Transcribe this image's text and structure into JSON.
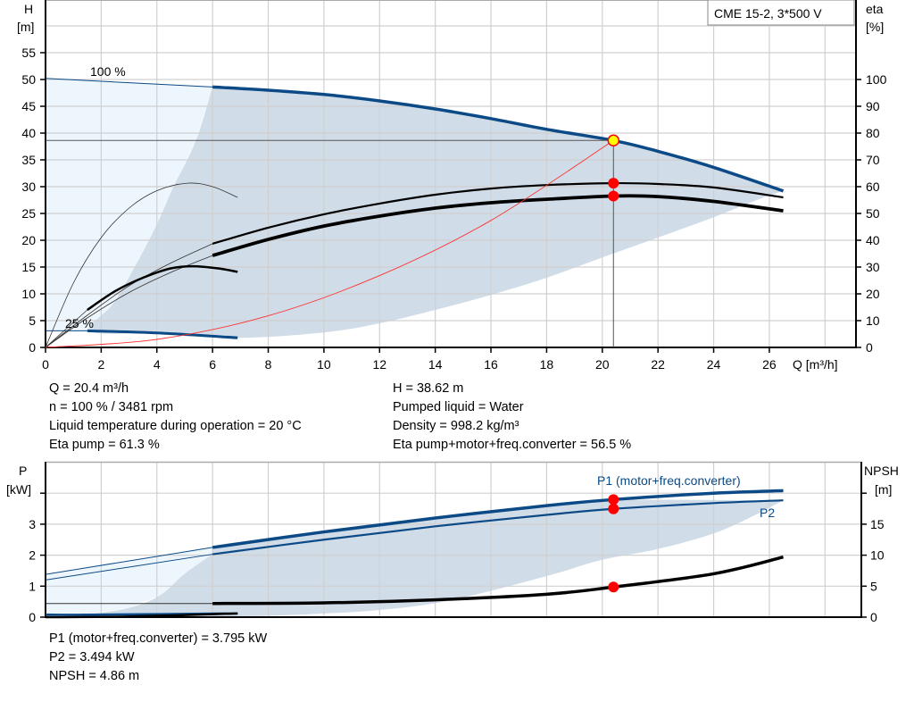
{
  "legend_box": "CME 15-2, 3*500 V",
  "colors": {
    "curve_blue": "#0b4a86",
    "range_dark": "#d0dce8",
    "range_light": "#eef6fd",
    "operating_point": "#ff0000",
    "duty_point_fill": "#ffff00",
    "system_curve": "#ff3030"
  },
  "chart_data": [
    {
      "type": "line",
      "xlabel": "Q [m³/h]",
      "ylabel_left": [
        "H",
        "[m]"
      ],
      "ylabel_right": [
        "eta",
        "[%]"
      ],
      "xlim": [
        0,
        29
      ],
      "ylim_left": [
        0,
        65
      ],
      "ylim_right": [
        0,
        130
      ],
      "x_ticks": [
        "0",
        "2",
        "4",
        "6",
        "8",
        "10",
        "12",
        "14",
        "16",
        "18",
        "20",
        "22",
        "24",
        "26"
      ],
      "y_left_ticks": [
        "0",
        "5",
        "10",
        "15",
        "20",
        "25",
        "30",
        "35",
        "40",
        "45",
        "50",
        "55"
      ],
      "y_right_ticks": [
        "0",
        "10",
        "20",
        "30",
        "40",
        "50",
        "60",
        "70",
        "80",
        "90",
        "100"
      ],
      "grid": true,
      "annotations": [
        {
          "text": "100 %",
          "q": 2.4,
          "h": 50.5
        },
        {
          "text": "25 %",
          "q": 1.0,
          "h": 3.8
        }
      ],
      "speed_100_head": [
        [
          0,
          50.2
        ],
        [
          6,
          48.6
        ],
        [
          8,
          48.0
        ],
        [
          10,
          47.2
        ],
        [
          12,
          46.0
        ],
        [
          14,
          44.5
        ],
        [
          16,
          42.7
        ],
        [
          18,
          40.7
        ],
        [
          20.4,
          38.62
        ],
        [
          22,
          36.6
        ],
        [
          24,
          33.6
        ],
        [
          26.5,
          29.2
        ]
      ],
      "speed_25_head": [
        [
          0,
          3.1
        ],
        [
          1.5,
          3.1
        ],
        [
          4,
          2.7
        ],
        [
          6.9,
          1.8
        ]
      ],
      "eta_pump_100": [
        [
          0,
          0
        ],
        [
          1.5,
          12
        ],
        [
          3,
          23
        ],
        [
          4.5,
          31.5
        ],
        [
          6,
          38.7
        ],
        [
          8,
          44.7
        ],
        [
          10,
          49.7
        ],
        [
          12,
          53.7
        ],
        [
          14,
          57
        ],
        [
          16,
          59.3
        ],
        [
          18,
          60.6
        ],
        [
          20.4,
          61.3
        ],
        [
          22,
          61
        ],
        [
          24,
          59.7
        ],
        [
          26.5,
          56
        ]
      ],
      "eta_total_100": [
        [
          0,
          0
        ],
        [
          1.5,
          11
        ],
        [
          3,
          20.5
        ],
        [
          4.5,
          28
        ],
        [
          6,
          34.3
        ],
        [
          8,
          40.3
        ],
        [
          10,
          45.3
        ],
        [
          12,
          49
        ],
        [
          14,
          52
        ],
        [
          16,
          54
        ],
        [
          18,
          55.3
        ],
        [
          20.4,
          56.5
        ],
        [
          22,
          56.3
        ],
        [
          24,
          54.5
        ],
        [
          26.5,
          51
        ]
      ],
      "eta_pump_25": [
        [
          0,
          0
        ],
        [
          1,
          24
        ],
        [
          2,
          41
        ],
        [
          3,
          52
        ],
        [
          4,
          58.5
        ],
        [
          5.1,
          61.3
        ],
        [
          6,
          60
        ],
        [
          6.9,
          56
        ]
      ],
      "eta_total_25": [
        [
          0,
          0
        ],
        [
          1.5,
          14
        ],
        [
          2.5,
          21
        ],
        [
          3.5,
          26
        ],
        [
          4.5,
          29.5
        ],
        [
          5.3,
          30.3
        ],
        [
          6.2,
          29.5
        ],
        [
          6.9,
          28.2
        ]
      ],
      "system_curve": [
        [
          0,
          0
        ],
        [
          4,
          1.5
        ],
        [
          8,
          5.9
        ],
        [
          12,
          13.4
        ],
        [
          16,
          23.7
        ],
        [
          20.4,
          38.62
        ]
      ],
      "range_dark": [
        [
          6,
          48.6
        ],
        [
          5.4,
          38.6
        ],
        [
          4.6,
          30
        ],
        [
          4,
          23
        ],
        [
          3.2,
          15
        ],
        [
          2.4,
          8
        ],
        [
          1.6,
          3.0
        ],
        [
          4,
          2.7
        ],
        [
          6.9,
          1.8
        ],
        [
          10,
          2.8
        ],
        [
          12,
          4.5
        ],
        [
          14,
          7
        ],
        [
          16,
          9.8
        ],
        [
          18,
          13
        ],
        [
          20,
          16.8
        ],
        [
          22,
          20.5
        ],
        [
          24,
          24.3
        ],
        [
          25.6,
          27.6
        ],
        [
          26.5,
          29.2
        ]
      ],
      "duty_point": {
        "q": 20.4,
        "h": 38.62
      },
      "operating_points_eta": [
        {
          "q": 20.4,
          "eta": 61.3
        },
        {
          "q": 20.4,
          "eta": 56.5
        }
      ]
    },
    {
      "type": "line",
      "ylabel_left": [
        "P",
        "[kW]"
      ],
      "ylabel_right": [
        "NPSH",
        "[m]"
      ],
      "xlim": [
        0,
        29
      ],
      "ylim_left": [
        0,
        5
      ],
      "ylim_right": [
        0,
        25
      ],
      "y_left_ticks": [
        "0",
        "1",
        "2",
        "3"
      ],
      "y_right_ticks": [
        "0",
        "5",
        "10",
        "15"
      ],
      "grid": true,
      "series_labels": {
        "p1": "P1 (motor+freq.converter)",
        "p2": "P2"
      },
      "p1": [
        [
          0,
          1.38
        ],
        [
          6,
          2.25
        ],
        [
          10,
          2.75
        ],
        [
          14,
          3.2
        ],
        [
          18,
          3.6
        ],
        [
          20.4,
          3.795
        ],
        [
          24,
          4.0
        ],
        [
          26.5,
          4.08
        ]
      ],
      "p2": [
        [
          0,
          1.2
        ],
        [
          6,
          2.03
        ],
        [
          10,
          2.5
        ],
        [
          14,
          2.93
        ],
        [
          18,
          3.3
        ],
        [
          20.4,
          3.494
        ],
        [
          24,
          3.68
        ],
        [
          26.5,
          3.77
        ]
      ],
      "p_25": [
        [
          0,
          0.08
        ],
        [
          1.5,
          0.08
        ],
        [
          6.9,
          0.12
        ]
      ],
      "npsh": [
        [
          0,
          2.2
        ],
        [
          6,
          2.2
        ],
        [
          10,
          2.3
        ],
        [
          14,
          2.8
        ],
        [
          18,
          3.7
        ],
        [
          20.4,
          4.86
        ],
        [
          24,
          7.0
        ],
        [
          26.5,
          9.7
        ]
      ],
      "npsh_25": [
        [
          0,
          0.0
        ],
        [
          3,
          0.1
        ],
        [
          6.9,
          0.6
        ]
      ],
      "range_dark": [
        [
          6,
          2.03
        ],
        [
          5,
          1.4
        ],
        [
          4.1,
          0.7
        ],
        [
          3,
          0.3
        ],
        [
          1.5,
          0.08
        ],
        [
          6.9,
          0.03
        ],
        [
          10,
          0.12
        ],
        [
          12,
          0.23
        ],
        [
          14,
          0.45
        ],
        [
          16,
          0.85
        ],
        [
          18.3,
          1.4
        ],
        [
          20,
          1.85
        ],
        [
          22,
          2.2
        ],
        [
          24,
          2.7
        ],
        [
          25.5,
          3.3
        ],
        [
          26.5,
          3.77
        ]
      ],
      "operating_points": [
        {
          "q": 20.4,
          "p": 3.795
        },
        {
          "q": 20.4,
          "p": 3.494
        },
        {
          "q": 20.4,
          "npsh": 4.86
        }
      ]
    }
  ],
  "info_top_left": [
    "Q = 20.4 m³/h",
    "n = 100 % / 3481 rpm",
    "Liquid temperature during operation = 20 °C",
    "Eta pump = 61.3 %"
  ],
  "info_top_right": [
    "H = 38.62 m",
    "Pumped liquid = Water",
    "Density = 998.2 kg/m³",
    "Eta pump+motor+freq.converter = 56.5 %"
  ],
  "info_bottom": [
    "P1 (motor+freq.converter) = 3.795 kW",
    "P2 = 3.494 kW",
    "NPSH = 4.86 m"
  ]
}
